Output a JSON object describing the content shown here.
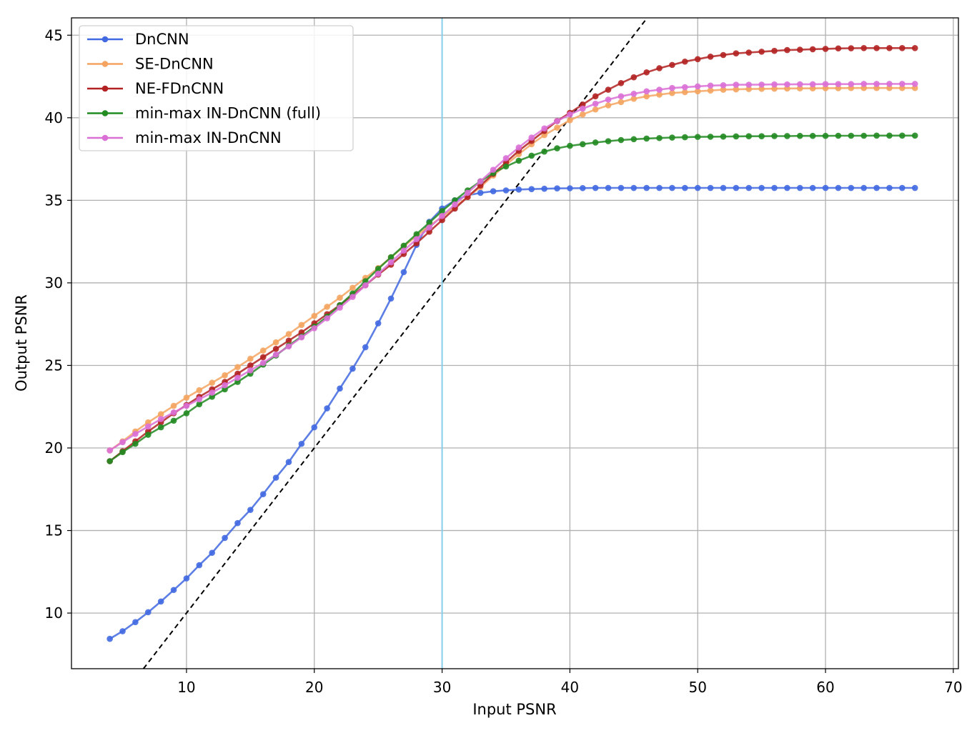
{
  "chart_data": {
    "type": "line",
    "title": "",
    "xlabel": "Input PSNR",
    "ylabel": "Output PSNR",
    "xlim": [
      1.0,
      70.4
    ],
    "ylim": [
      6.63,
      46.05
    ],
    "xticks": [
      10,
      20,
      30,
      40,
      50,
      60,
      70
    ],
    "yticks": [
      10,
      15,
      20,
      25,
      30,
      35,
      40,
      45
    ],
    "grid": true,
    "legend_position": "top-left",
    "reference_lines": [
      {
        "type": "diagonal",
        "equation": "y = x",
        "style": "dashed",
        "color": "#000000"
      },
      {
        "type": "vertical",
        "x": 30,
        "color": "#87ceeb"
      }
    ],
    "x": [
      4,
      5,
      6,
      7,
      8,
      9,
      10,
      11,
      12,
      13,
      14,
      15,
      16,
      17,
      18,
      19,
      20,
      21,
      22,
      23,
      24,
      25,
      26,
      27,
      28,
      29,
      30,
      31,
      32,
      33,
      34,
      35,
      36,
      37,
      38,
      39,
      40,
      41,
      42,
      43,
      44,
      45,
      46,
      47,
      48,
      49,
      50,
      51,
      52,
      53,
      54,
      55,
      56,
      57,
      58,
      59,
      60,
      61,
      62,
      63,
      64,
      65,
      66,
      67
    ],
    "series": [
      {
        "name": "DnCNN",
        "color": "#4169e1",
        "values": [
          8.44,
          8.9,
          9.45,
          10.05,
          10.7,
          11.4,
          12.1,
          12.9,
          13.65,
          14.55,
          15.45,
          16.25,
          17.2,
          18.2,
          19.15,
          20.25,
          21.25,
          22.4,
          23.6,
          24.8,
          26.1,
          27.55,
          29.05,
          30.65,
          32.3,
          33.7,
          34.5,
          35.0,
          35.3,
          35.45,
          35.55,
          35.6,
          35.65,
          35.68,
          35.7,
          35.72,
          35.73,
          35.74,
          35.75,
          35.75,
          35.75,
          35.75,
          35.75,
          35.75,
          35.75,
          35.75,
          35.75,
          35.75,
          35.75,
          35.75,
          35.75,
          35.75,
          35.75,
          35.75,
          35.75,
          35.75,
          35.75,
          35.75,
          35.75,
          35.75,
          35.75,
          35.75,
          35.75,
          35.75
        ]
      },
      {
        "name": "SE-DnCNN",
        "color": "#f4a460",
        "values": [
          19.85,
          20.4,
          21.0,
          21.55,
          22.05,
          22.55,
          23.05,
          23.5,
          23.95,
          24.4,
          24.9,
          25.4,
          25.9,
          26.4,
          26.9,
          27.45,
          28.0,
          28.55,
          29.1,
          29.7,
          30.3,
          30.9,
          31.55,
          32.2,
          32.85,
          33.45,
          34.0,
          34.6,
          35.2,
          35.8,
          36.5,
          37.15,
          37.8,
          38.4,
          38.95,
          39.4,
          39.85,
          40.2,
          40.5,
          40.75,
          40.95,
          41.15,
          41.3,
          41.4,
          41.5,
          41.55,
          41.6,
          41.65,
          41.7,
          41.72,
          41.74,
          41.75,
          41.76,
          41.77,
          41.78,
          41.78,
          41.79,
          41.79,
          41.8,
          41.8,
          41.8,
          41.8,
          41.8,
          41.8
        ]
      },
      {
        "name": "NE-FDnCNN",
        "color": "#b22222",
        "values": [
          19.2,
          19.8,
          20.4,
          21.0,
          21.55,
          22.1,
          22.6,
          23.1,
          23.55,
          24.0,
          24.5,
          25.0,
          25.5,
          26.0,
          26.5,
          27.0,
          27.55,
          28.1,
          28.65,
          29.25,
          29.85,
          30.5,
          31.1,
          31.75,
          32.4,
          33.1,
          33.8,
          34.5,
          35.2,
          35.9,
          36.6,
          37.3,
          38.0,
          38.6,
          39.2,
          39.8,
          40.3,
          40.8,
          41.3,
          41.7,
          42.1,
          42.45,
          42.75,
          43.0,
          43.2,
          43.4,
          43.55,
          43.7,
          43.8,
          43.9,
          43.95,
          44.0,
          44.05,
          44.1,
          44.12,
          44.15,
          44.17,
          44.2,
          44.21,
          44.22,
          44.22,
          44.22,
          44.22,
          44.22
        ]
      },
      {
        "name": "min-max IN-DnCNN (full)",
        "color": "#228b22",
        "values": [
          19.2,
          19.75,
          20.25,
          20.8,
          21.25,
          21.65,
          22.1,
          22.65,
          23.1,
          23.55,
          24.0,
          24.5,
          25.05,
          25.6,
          26.2,
          26.75,
          27.35,
          27.95,
          28.65,
          29.35,
          30.1,
          30.85,
          31.55,
          32.25,
          32.95,
          33.65,
          34.35,
          35.0,
          35.6,
          36.15,
          36.65,
          37.05,
          37.4,
          37.7,
          37.95,
          38.15,
          38.3,
          38.4,
          38.5,
          38.58,
          38.65,
          38.7,
          38.74,
          38.77,
          38.8,
          38.82,
          38.84,
          38.85,
          38.86,
          38.87,
          38.88,
          38.88,
          38.89,
          38.89,
          38.9,
          38.9,
          38.9,
          38.91,
          38.91,
          38.91,
          38.92,
          38.92,
          38.92,
          38.92
        ]
      },
      {
        "name": "min-max IN-DnCNN",
        "color": "#da70d6",
        "values": [
          19.85,
          20.35,
          20.85,
          21.3,
          21.75,
          22.15,
          22.55,
          22.95,
          23.35,
          23.8,
          24.25,
          24.7,
          25.15,
          25.65,
          26.15,
          26.7,
          27.25,
          27.85,
          28.5,
          29.15,
          29.85,
          30.55,
          31.25,
          31.95,
          32.65,
          33.35,
          34.05,
          34.75,
          35.45,
          36.15,
          36.85,
          37.55,
          38.2,
          38.8,
          39.35,
          39.8,
          40.2,
          40.55,
          40.85,
          41.1,
          41.3,
          41.45,
          41.6,
          41.7,
          41.8,
          41.85,
          41.9,
          41.95,
          41.97,
          42.0,
          42.0,
          42.01,
          42.02,
          42.02,
          42.03,
          42.03,
          42.04,
          42.04,
          42.04,
          42.05,
          42.05,
          42.05,
          42.05,
          42.05
        ]
      }
    ]
  }
}
